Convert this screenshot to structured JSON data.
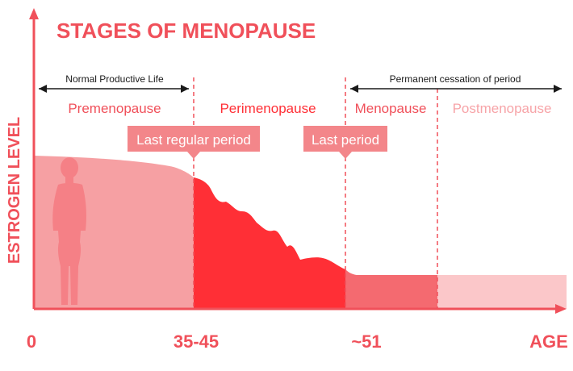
{
  "title": "STAGES OF MENOPAUSE",
  "y_axis_label": "ESTROGEN LEVEL",
  "x_ticks": [
    "0",
    "35-45",
    "~51",
    "AGE"
  ],
  "spans": {
    "normal_productive_life": "Normal Productive Life",
    "permanent_cessation": "Permanent cessation of period"
  },
  "stages": {
    "premenopause": "Premenopause",
    "perimenopause": "Perimenopause",
    "menopause": "Menopause",
    "postmenopause": "Postmenopause"
  },
  "callouts": {
    "last_regular_period": "Last regular period",
    "last_period": "Last period"
  },
  "colors": {
    "accent": "#f0505a",
    "premenopause": "#f6a0a3",
    "perimenopause": "#ff2f36",
    "menopause": "#f46a70",
    "postmenopause": "#fbc7c9",
    "silhouette": "#f58086",
    "callout_fill": "#f3868a",
    "text_dark": "#1a1a1a",
    "text_light": "#f7a4a8"
  }
}
